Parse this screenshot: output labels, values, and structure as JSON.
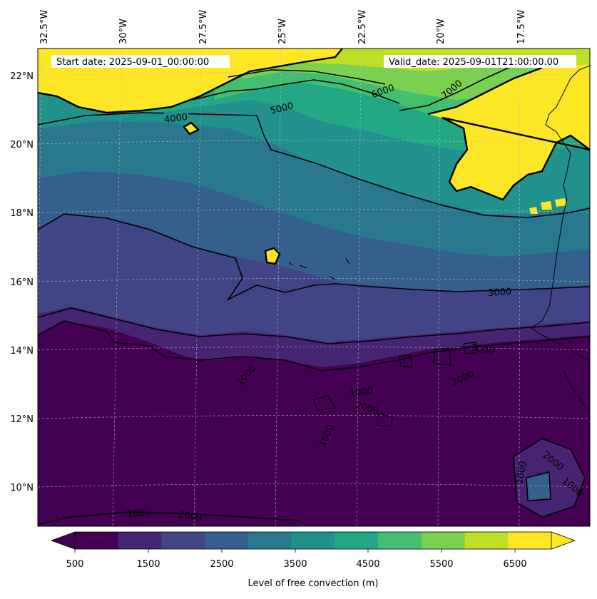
{
  "header": {
    "start_date": "Start date: 2025-09-01_00:00:00",
    "valid_date": "Valid_date: 2025-09-01T21:00:00.00"
  },
  "axes": {
    "lon_labels": [
      "32.5°W",
      "30°W",
      "27.5°W",
      "25°W",
      "22.5°W",
      "20°W",
      "17.5°W"
    ],
    "lat_labels": [
      "22°N",
      "20°N",
      "18°N",
      "16°N",
      "14°N",
      "12°N",
      "10°N"
    ]
  },
  "contour_labels": [
    "1000",
    "2000",
    "3000",
    "4000",
    "5000",
    "6000",
    "7000"
  ],
  "colorbar": {
    "label": "Level of free convection (m)",
    "ticks": [
      "500",
      "1500",
      "2500",
      "3500",
      "4500",
      "5500",
      "6500"
    ],
    "colors": [
      "#440154",
      "#482475",
      "#414487",
      "#355f8d",
      "#2a788e",
      "#21918c",
      "#22a884",
      "#44bf70",
      "#7ad151",
      "#bddf26",
      "#fde725"
    ],
    "under_color": "#440154",
    "over_color": "#fde725"
  },
  "colors": {
    "land_line": "#000000",
    "grid_line": "#bbbbbb"
  }
}
